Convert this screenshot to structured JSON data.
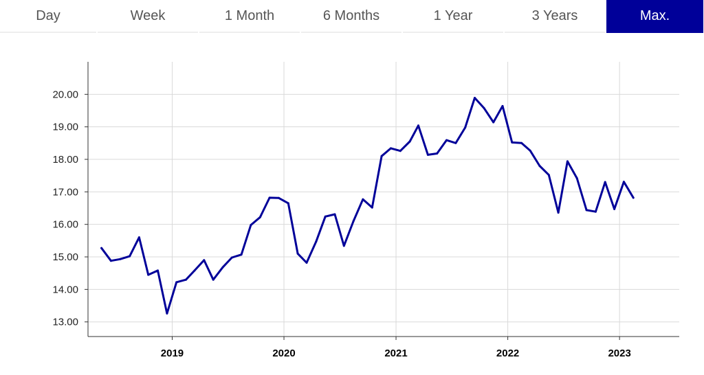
{
  "tabs": [
    {
      "label": "Day",
      "active": false
    },
    {
      "label": "Week",
      "active": false
    },
    {
      "label": "1 Month",
      "active": false
    },
    {
      "label": "6 Months",
      "active": false
    },
    {
      "label": "1 Year",
      "active": false
    },
    {
      "label": "3 Years",
      "active": false
    },
    {
      "label": "Max.",
      "active": true
    }
  ],
  "colors": {
    "accent": "#000099",
    "line": "#000099",
    "grid": "#d9d9d9"
  },
  "chart_data": {
    "type": "line",
    "title": "",
    "xlabel": "",
    "ylabel": "",
    "ylim": [
      12.55,
      21.0
    ],
    "xlim": [
      "2018-04-01",
      "2023-07-15"
    ],
    "y_ticks": [
      "13.00",
      "14.00",
      "15.00",
      "16.00",
      "17.00",
      "18.00",
      "19.00",
      "20.00"
    ],
    "x_ticks": [
      "2019",
      "2020",
      "2021",
      "2022",
      "2023"
    ],
    "grid": true,
    "series": [
      {
        "x": [
          "2018-05",
          "2018-06",
          "2018-07",
          "2018-08",
          "2018-09",
          "2018-10",
          "2018-11",
          "2018-12",
          "2019-01",
          "2019-02",
          "2019-03",
          "2019-04",
          "2019-05",
          "2019-06",
          "2019-07",
          "2019-08",
          "2019-09",
          "2019-10",
          "2019-11",
          "2019-12",
          "2020-01",
          "2020-02",
          "2020-03",
          "2020-04",
          "2020-05",
          "2020-06",
          "2020-07",
          "2020-08",
          "2020-09",
          "2020-10",
          "2020-11",
          "2020-12",
          "2021-01",
          "2021-02",
          "2021-03",
          "2021-04",
          "2021-05",
          "2021-06",
          "2021-07",
          "2021-08",
          "2021-09",
          "2021-10",
          "2021-11",
          "2021-12",
          "2022-01",
          "2022-02",
          "2022-03",
          "2022-04",
          "2022-05",
          "2022-06",
          "2022-07",
          "2022-08",
          "2022-09",
          "2022-10",
          "2022-11",
          "2022-12",
          "2023-01",
          "2023-02"
        ],
        "values": [
          15.27,
          14.88,
          14.93,
          15.02,
          15.6,
          14.45,
          14.58,
          13.26,
          14.22,
          14.3,
          14.58,
          14.9,
          14.3,
          14.68,
          14.98,
          15.07,
          15.98,
          16.22,
          16.82,
          16.81,
          16.65,
          15.1,
          14.82,
          15.47,
          16.24,
          16.31,
          15.34,
          16.1,
          16.77,
          16.52,
          18.1,
          18.34,
          18.26,
          18.55,
          19.04,
          18.14,
          18.18,
          18.59,
          18.5,
          18.98,
          19.89,
          19.58,
          19.14,
          19.64,
          18.52,
          18.5,
          18.27,
          17.8,
          17.52,
          16.36,
          17.94,
          17.42,
          16.44,
          16.39,
          17.3,
          16.47,
          17.31,
          16.82
        ]
      }
    ]
  }
}
